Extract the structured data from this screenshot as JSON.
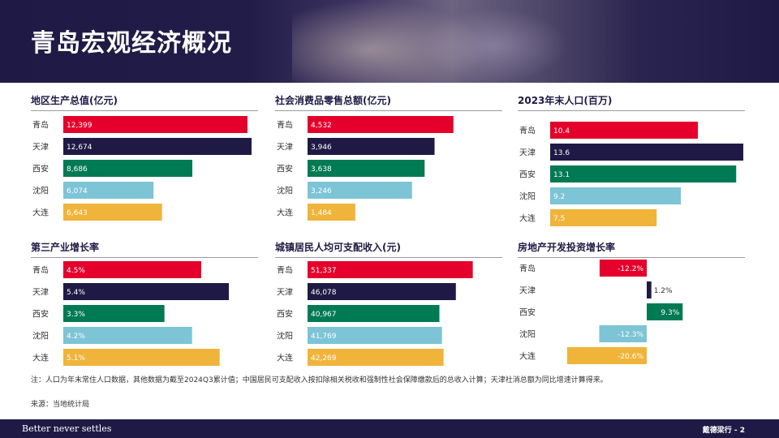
{
  "page": {
    "title": "青岛宏观经济概况"
  },
  "colors": {
    "navy": "#1f1a45",
    "red": "#e4002b",
    "green": "#007a53",
    "lightblue": "#7cc4d6",
    "gold": "#f0b43a"
  },
  "chart_data": [
    {
      "type": "bar",
      "title": "地区生产总值(亿元)",
      "categories": [
        "青岛",
        "天津",
        "西安",
        "沈阳",
        "大连"
      ],
      "values": [
        12399,
        12674,
        8686,
        6074,
        6643
      ],
      "labels": [
        "12,399",
        "12,674",
        "8,686",
        "6,074",
        "6,643"
      ],
      "xlim": [
        0,
        13000
      ]
    },
    {
      "type": "bar",
      "title": "社会消费品零售总额(亿元)",
      "categories": [
        "青岛",
        "天津",
        "西安",
        "沈阳",
        "大连"
      ],
      "values": [
        4532,
        3946,
        3638,
        3246,
        1484
      ],
      "labels": [
        "4,532",
        "3,946",
        "3,638",
        "3,246",
        "1,484"
      ],
      "xlim": [
        0,
        6000
      ]
    },
    {
      "type": "bar",
      "title": "2023年末人口(百万)",
      "categories": [
        "青岛",
        "天津",
        "西安",
        "沈阳",
        "大连"
      ],
      "values": [
        10.4,
        13.6,
        13.1,
        9.2,
        7.5
      ],
      "labels": [
        "10.4",
        "13.6",
        "13.1",
        "9.2",
        "7.5"
      ],
      "xlim": [
        0,
        13.6
      ]
    },
    {
      "type": "bar",
      "title": "第三产业增长率",
      "categories": [
        "青岛",
        "天津",
        "西安",
        "沈阳",
        "大连"
      ],
      "values": [
        4.5,
        5.4,
        3.3,
        4.2,
        5.1
      ],
      "labels": [
        "4.5%",
        "5.4%",
        "3.3%",
        "4.2%",
        "5.1%"
      ],
      "xlim": [
        0,
        6.3
      ]
    },
    {
      "type": "bar",
      "title": "城镇居民人均可支配收入(元)",
      "categories": [
        "青岛",
        "天津",
        "西安",
        "沈阳",
        "大连"
      ],
      "values": [
        51337,
        46078,
        40967,
        41769,
        42269
      ],
      "labels": [
        "51,337",
        "46,078",
        "40,967",
        "41,769",
        "42,269"
      ],
      "xlim": [
        0,
        60000
      ]
    },
    {
      "type": "bar",
      "title": "房地产开发投资增长率",
      "categories": [
        "青岛",
        "天津",
        "西安",
        "沈阳",
        "大连"
      ],
      "values": [
        -12.2,
        1.2,
        9.3,
        -12.3,
        -20.6
      ],
      "labels": [
        "-12.2%",
        "1.2%",
        "9.3%",
        "-12.3%",
        "-20.6%"
      ],
      "xlim": [
        -25,
        25
      ]
    }
  ],
  "footnote": "注：人口为年末常住人口数据，其他数据为截至2024Q3累计值；中国居民可支配收入按扣除相关税收和强制性社会保障缴款后的总收入计算；天津社消总额为同比增速计算得来。",
  "source": "来源：当地统计局",
  "footer": {
    "tagline": "Better never settles",
    "brand": "戴德梁行 - 2"
  }
}
